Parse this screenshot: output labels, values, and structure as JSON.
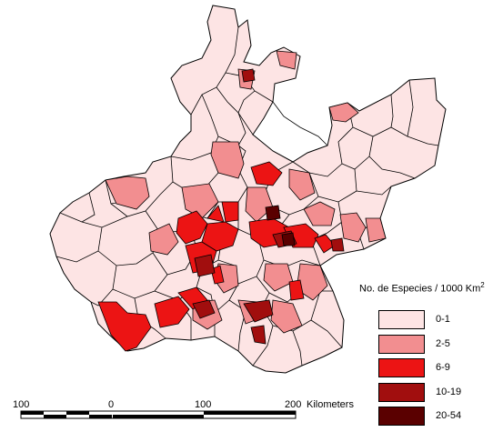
{
  "colors": {
    "class_0_1": "#fde4e4",
    "class_2_5": "#f28e90",
    "class_6_9": "#ec1414",
    "class_10_19": "#a10e0e",
    "class_20_54": "#5a0000",
    "boundary": "#000000"
  },
  "legend": {
    "title": "No. de Especies / 1000 Km",
    "title_superscript": "2",
    "classes": [
      {
        "label": "0-1",
        "color": "#fde4e4"
      },
      {
        "label": "2-5",
        "color": "#f28e90"
      },
      {
        "label": "6-9",
        "color": "#ec1414"
      },
      {
        "label": "10-19",
        "color": "#a10e0e"
      },
      {
        "label": "20-54",
        "color": "#5a0000"
      }
    ]
  },
  "scale_bar": {
    "tick_labels": [
      "100",
      "0",
      "100",
      "200"
    ],
    "units": "Kilometers"
  }
}
